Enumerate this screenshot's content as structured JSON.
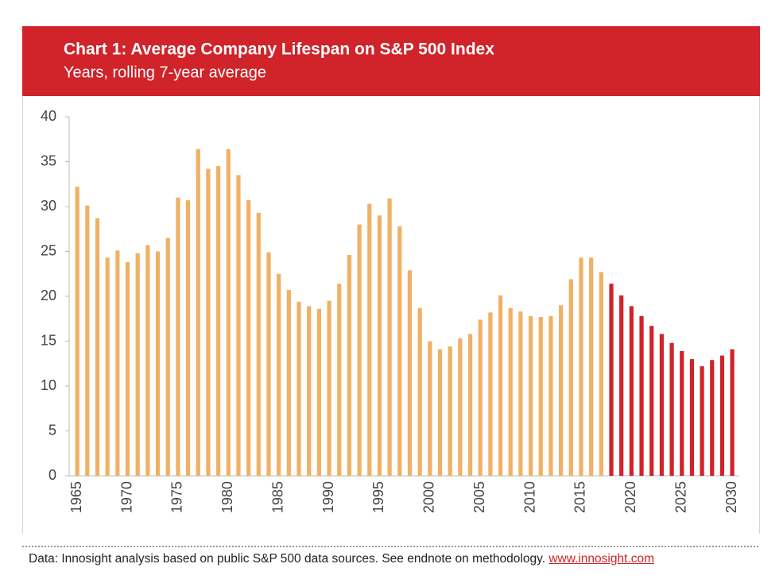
{
  "chart_data": {
    "type": "bar",
    "title": "Chart 1: Average Company Lifespan on S&P 500 Index",
    "subtitle": "Years, rolling 7-year average",
    "x": [
      1965,
      1966,
      1967,
      1968,
      1969,
      1970,
      1971,
      1972,
      1973,
      1974,
      1975,
      1976,
      1977,
      1978,
      1979,
      1980,
      1981,
      1982,
      1983,
      1984,
      1985,
      1986,
      1987,
      1988,
      1989,
      1990,
      1991,
      1992,
      1993,
      1994,
      1995,
      1996,
      1997,
      1998,
      1999,
      2000,
      2001,
      2002,
      2003,
      2004,
      2005,
      2006,
      2007,
      2008,
      2009,
      2010,
      2011,
      2012,
      2013,
      2014,
      2015,
      2016,
      2017,
      2018,
      2019,
      2020,
      2021,
      2022,
      2023,
      2024,
      2025,
      2026,
      2027,
      2028,
      2029,
      2030
    ],
    "values": [
      32.2,
      30.1,
      28.7,
      24.3,
      25.1,
      23.8,
      24.8,
      25.7,
      25.0,
      26.5,
      31.0,
      30.7,
      36.4,
      34.2,
      34.5,
      36.4,
      33.5,
      30.7,
      29.3,
      24.9,
      22.5,
      20.7,
      19.4,
      18.9,
      18.6,
      19.5,
      21.4,
      24.6,
      28.0,
      30.3,
      29.0,
      30.9,
      27.8,
      22.9,
      18.7,
      15.0,
      14.1,
      14.4,
      15.3,
      15.8,
      17.4,
      18.2,
      20.1,
      18.7,
      18.3,
      17.8,
      17.7,
      17.8,
      19.0,
      21.9,
      24.3,
      24.3,
      22.7,
      21.4,
      20.1,
      18.9,
      17.8,
      16.7,
      15.8,
      14.8,
      13.9,
      13.0,
      12.2,
      12.9,
      13.4,
      14.1
    ],
    "color": "#f0b165",
    "highlight_color": "#d0232a",
    "highlight_from": 2018,
    "xlim": [
      1964.2,
      2030.7
    ],
    "xticks": [
      1965,
      1970,
      1975,
      1980,
      1985,
      1990,
      1995,
      2000,
      2005,
      2010,
      2015,
      2020,
      2025,
      2030
    ],
    "ylim": [
      0,
      40
    ],
    "yticks": [
      0,
      5,
      10,
      15,
      20,
      25,
      30,
      35,
      40
    ],
    "source": "Data: Innosight analysis based on public S&P 500 data sources. See endnote on methodology.",
    "link": "www.innosight.com"
  }
}
